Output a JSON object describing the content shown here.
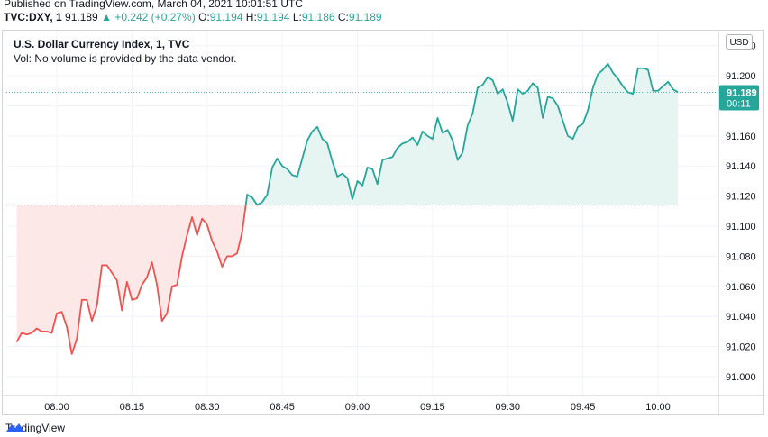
{
  "header": {
    "published": "Published on TradingView.com, March 04, 2021 10:01:51 UTC",
    "symbol": "TVC:DXY, 1",
    "last": "91.189",
    "change": "+0.242 (+0.27%)",
    "open_label": "O:",
    "open": "91.194",
    "high_label": "H:",
    "high": "91.194",
    "low_label": "L:",
    "low": "91.186",
    "close_label": "C:",
    "close": "91.189",
    "up_arrow_icon": "triangle-up-icon"
  },
  "chart_title": "U.S. Dollar Currency Index, 1, TVC",
  "volume_note": "Vol: No volume is provided by the data vendor.",
  "currency_button": "USD",
  "price_tag": {
    "price": "91.189",
    "countdown": "00:11"
  },
  "footer": {
    "brand": "TradingView",
    "logo_icon": "tradingview-logo-icon"
  },
  "colors": {
    "up": "#26a69a",
    "down": "#ef5350",
    "up_fill": "#e6f4f2",
    "down_fill": "#fde8e8"
  },
  "chart_data": {
    "type": "area",
    "baseline": 91.114,
    "ylim": [
      90.988,
      91.23
    ],
    "y_ticks": [
      "91.000",
      "91.020",
      "91.040",
      "91.060",
      "91.080",
      "91.100",
      "91.120",
      "91.140",
      "91.160",
      "91.180",
      "91.200",
      "91.220"
    ],
    "x_ticks": [
      "08:00",
      "08:15",
      "08:30",
      "08:45",
      "09:00",
      "09:15",
      "09:30",
      "09:45",
      "10:00"
    ],
    "x_start": "07:52",
    "series": [
      {
        "values": [
          91.023,
          91.029,
          91.028,
          91.029,
          91.032,
          91.03,
          91.03,
          91.029,
          91.042,
          91.043,
          91.033,
          91.015,
          91.025,
          91.051,
          91.051,
          91.037,
          91.047,
          91.074,
          91.074,
          91.069,
          91.064,
          91.044,
          91.063,
          91.051,
          91.052,
          91.061,
          91.066,
          91.076,
          91.061,
          91.037,
          91.042,
          91.06,
          91.061,
          91.08,
          91.094,
          91.106,
          91.094,
          91.105,
          91.101,
          91.09,
          91.083,
          91.073,
          91.08,
          91.08,
          91.082,
          91.096,
          91.121,
          91.119,
          91.114,
          91.116,
          91.121,
          91.139,
          91.145,
          91.14,
          91.138,
          91.134,
          91.133,
          91.145,
          91.157,
          91.163,
          91.166,
          91.158,
          91.155,
          91.143,
          91.133,
          91.135,
          91.132,
          91.118,
          91.13,
          91.127,
          91.139,
          91.138,
          91.128,
          91.144,
          91.145,
          91.146,
          91.152,
          91.155,
          91.156,
          91.159,
          91.154,
          91.163,
          91.16,
          91.158,
          91.172,
          91.162,
          91.164,
          91.157,
          91.144,
          91.149,
          91.167,
          91.175,
          91.192,
          91.194,
          91.199,
          91.197,
          91.188,
          91.191,
          91.182,
          91.17,
          91.191,
          91.188,
          91.19,
          91.195,
          91.192,
          91.172,
          91.186,
          91.185,
          91.18,
          91.17,
          91.16,
          91.158,
          91.166,
          91.168,
          91.177,
          91.192,
          91.201,
          91.204,
          91.208,
          91.202,
          91.198,
          91.193,
          91.189,
          91.188,
          91.205,
          91.205,
          91.204,
          91.19,
          91.19,
          91.193,
          91.196,
          91.191,
          91.189
        ]
      }
    ]
  }
}
